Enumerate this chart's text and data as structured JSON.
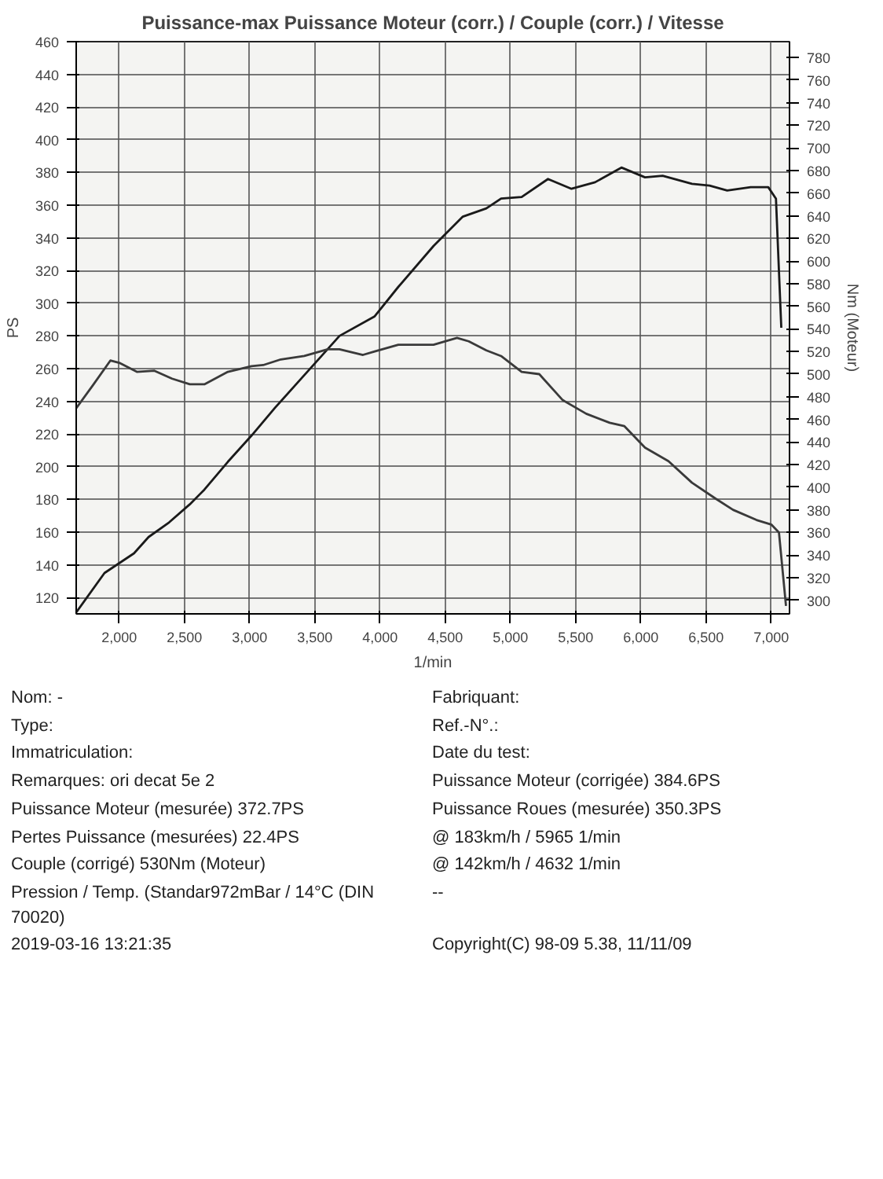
{
  "chart_data": {
    "type": "line",
    "title": "Puissance-max Puissance Moteur (corr.) / Couple (corr.) / Vitesse",
    "xlabel": "1/min",
    "ylabel": "PS",
    "y2label": "Nm (Moteur)",
    "xlim": [
      1670,
      7140
    ],
    "ylim": [
      110,
      460
    ],
    "y2lim": [
      288,
      794
    ],
    "xticks": [
      {
        "value": 2000,
        "label": "2,000"
      },
      {
        "value": 2500,
        "label": "2,500"
      },
      {
        "value": 3000,
        "label": "3,000"
      },
      {
        "value": 3500,
        "label": "3,500"
      },
      {
        "value": 4000,
        "label": "4,000"
      },
      {
        "value": 4500,
        "label": "4,500"
      },
      {
        "value": 5000,
        "label": "5,000"
      },
      {
        "value": 5500,
        "label": "5,500"
      },
      {
        "value": 6000,
        "label": "6,000"
      },
      {
        "value": 6500,
        "label": "6,500"
      },
      {
        "value": 7000,
        "label": "7,000"
      }
    ],
    "yticks": [
      120,
      140,
      160,
      180,
      200,
      220,
      240,
      260,
      280,
      300,
      320,
      340,
      360,
      380,
      400,
      420,
      440,
      460
    ],
    "y2ticks": [
      300,
      320,
      340,
      360,
      380,
      400,
      420,
      440,
      460,
      480,
      500,
      520,
      540,
      560,
      580,
      600,
      620,
      640,
      660,
      680,
      700,
      720,
      740,
      760,
      780
    ],
    "grid": true,
    "marker": "none",
    "line_style": "solid",
    "series": [
      {
        "color": "#1a1a1a",
        "x": [
          1671,
          1887,
          2113,
          2225,
          2383,
          2541,
          2653,
          2833,
          3014,
          3194,
          3374,
          3554,
          3689,
          3959,
          4140,
          4410,
          4635,
          4815,
          4928,
          5086,
          5288,
          5468,
          5649,
          5851,
          6032,
          6167,
          6392,
          6527,
          6662,
          6842,
          6977,
          7036,
          7077
        ],
        "values": [
          111,
          135,
          147,
          157,
          166,
          177,
          186,
          203,
          219,
          236,
          252,
          268,
          280,
          292,
          310,
          335,
          353,
          358,
          364,
          365,
          376,
          370,
          374,
          383,
          377,
          378,
          373,
          372,
          369,
          371,
          371,
          364,
          285
        ]
      },
      {
        "color": "#3a3a3a",
        "axis": "y2",
        "x": [
          1671,
          1797,
          1932,
          2000,
          2135,
          2270,
          2405,
          2541,
          2653,
          2833,
          3014,
          3104,
          3239,
          3419,
          3599,
          3689,
          3869,
          3959,
          4140,
          4410,
          4590,
          4680,
          4815,
          4928,
          5086,
          5221,
          5401,
          5581,
          5761,
          5874,
          6032,
          6212,
          6392,
          6572,
          6707,
          6887,
          7000,
          7059,
          7113
        ],
        "values": [
          470,
          490,
          512,
          510,
          502,
          503,
          496,
          491,
          491,
          502,
          507,
          508,
          513,
          516,
          522,
          522,
          517,
          520,
          526,
          526,
          532,
          529,
          521,
          516,
          502,
          500,
          477,
          465,
          457,
          454,
          435,
          423,
          404,
          390,
          380,
          371,
          367,
          360,
          295
        ]
      }
    ],
    "annotations": [
      "Nom: -",
      "Fabriquant:",
      "Type:",
      "Ref.-N°.:",
      "Immatriculation:",
      "Date du test:",
      "Remarques: ori decat 5e 2",
      "Puissance Moteur (corrigée) 384.6PS",
      "Puissance Moteur (mesurée) 372.7PS",
      "Puissance Roues (mesurée) 350.3PS",
      "Pertes Puissance (mesurées) 22.4PS",
      "@ 183km/h / 5965 1/min",
      "Couple (corrigé) 530Nm (Moteur)",
      "@ 142km/h / 4632 1/min",
      "Pression / Temp. (Standar972mBar / 14°C (DIN 70020)",
      "--",
      "2019-03-16 13:21:35",
      "Copyright(C) 98-09 5.38, 11/11/09"
    ]
  }
}
